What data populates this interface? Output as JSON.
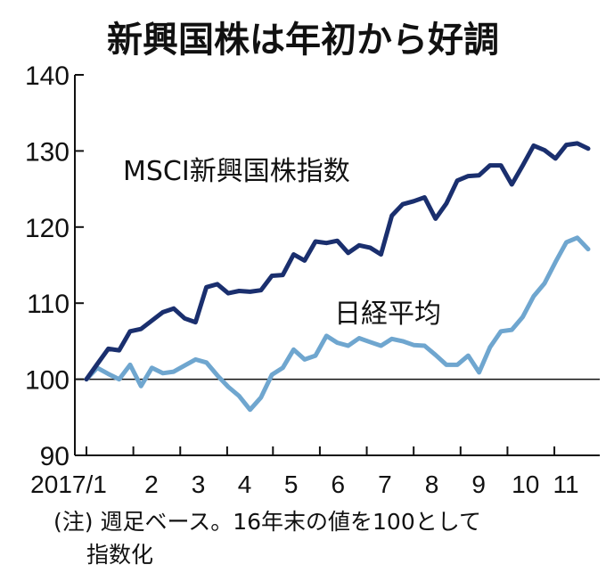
{
  "chart_data": {
    "type": "line",
    "title": "新興国株は年初から好調",
    "xlabel": "",
    "ylabel": "",
    "ylim": [
      90,
      140
    ],
    "yticks": [
      "140",
      "130",
      "120",
      "110",
      "100",
      "90"
    ],
    "reference_line": 100,
    "x_tick_labels": [
      "2017/1",
      "2",
      "3",
      "4",
      "5",
      "6",
      "7",
      "8",
      "9",
      "10",
      "11"
    ],
    "x_tick_weeks": [
      0,
      4.3,
      8.6,
      12.9,
      17.1,
      21.4,
      25.7,
      30,
      34.3,
      38.6,
      42.9
    ],
    "series": [
      {
        "name": "MSCI新興国株指数",
        "color": "#1a2f6e",
        "values": [
          100,
          102,
          104,
          103.8,
          106.3,
          106.6,
          107.7,
          108.8,
          109.3,
          108,
          107.5,
          112.1,
          112.5,
          111.3,
          111.6,
          111.5,
          111.7,
          113.6,
          113.7,
          116.4,
          115.6,
          118.1,
          117.9,
          118.2,
          116.6,
          117.6,
          117.3,
          116.4,
          121.5,
          123,
          123.4,
          123.9,
          121.1,
          123.1,
          126.1,
          126.7,
          126.8,
          128.1,
          128.1,
          125.6,
          128.1,
          130.7,
          130.1,
          129,
          130.8,
          131,
          130.3
        ]
      },
      {
        "name": "日経平均",
        "color": "#6fa6cf",
        "values": [
          100,
          101.5,
          100.7,
          100,
          101.9,
          99.1,
          101.5,
          100.8,
          101,
          101.8,
          102.6,
          102.2,
          100.5,
          99,
          97.8,
          96,
          97.6,
          100.6,
          101.5,
          103.9,
          102.6,
          103.1,
          105.7,
          104.8,
          104.4,
          105.4,
          104.9,
          104.4,
          105.3,
          105,
          104.5,
          104.4,
          103.2,
          101.9,
          101.9,
          103.1,
          100.9,
          104.2,
          106.3,
          106.5,
          108.2,
          110.9,
          112.6,
          115.4,
          118,
          118.6,
          117.1
        ]
      }
    ],
    "note_line1": "(注) 週足ベース。16年末の値を100として",
    "note_line2": "指数化"
  }
}
